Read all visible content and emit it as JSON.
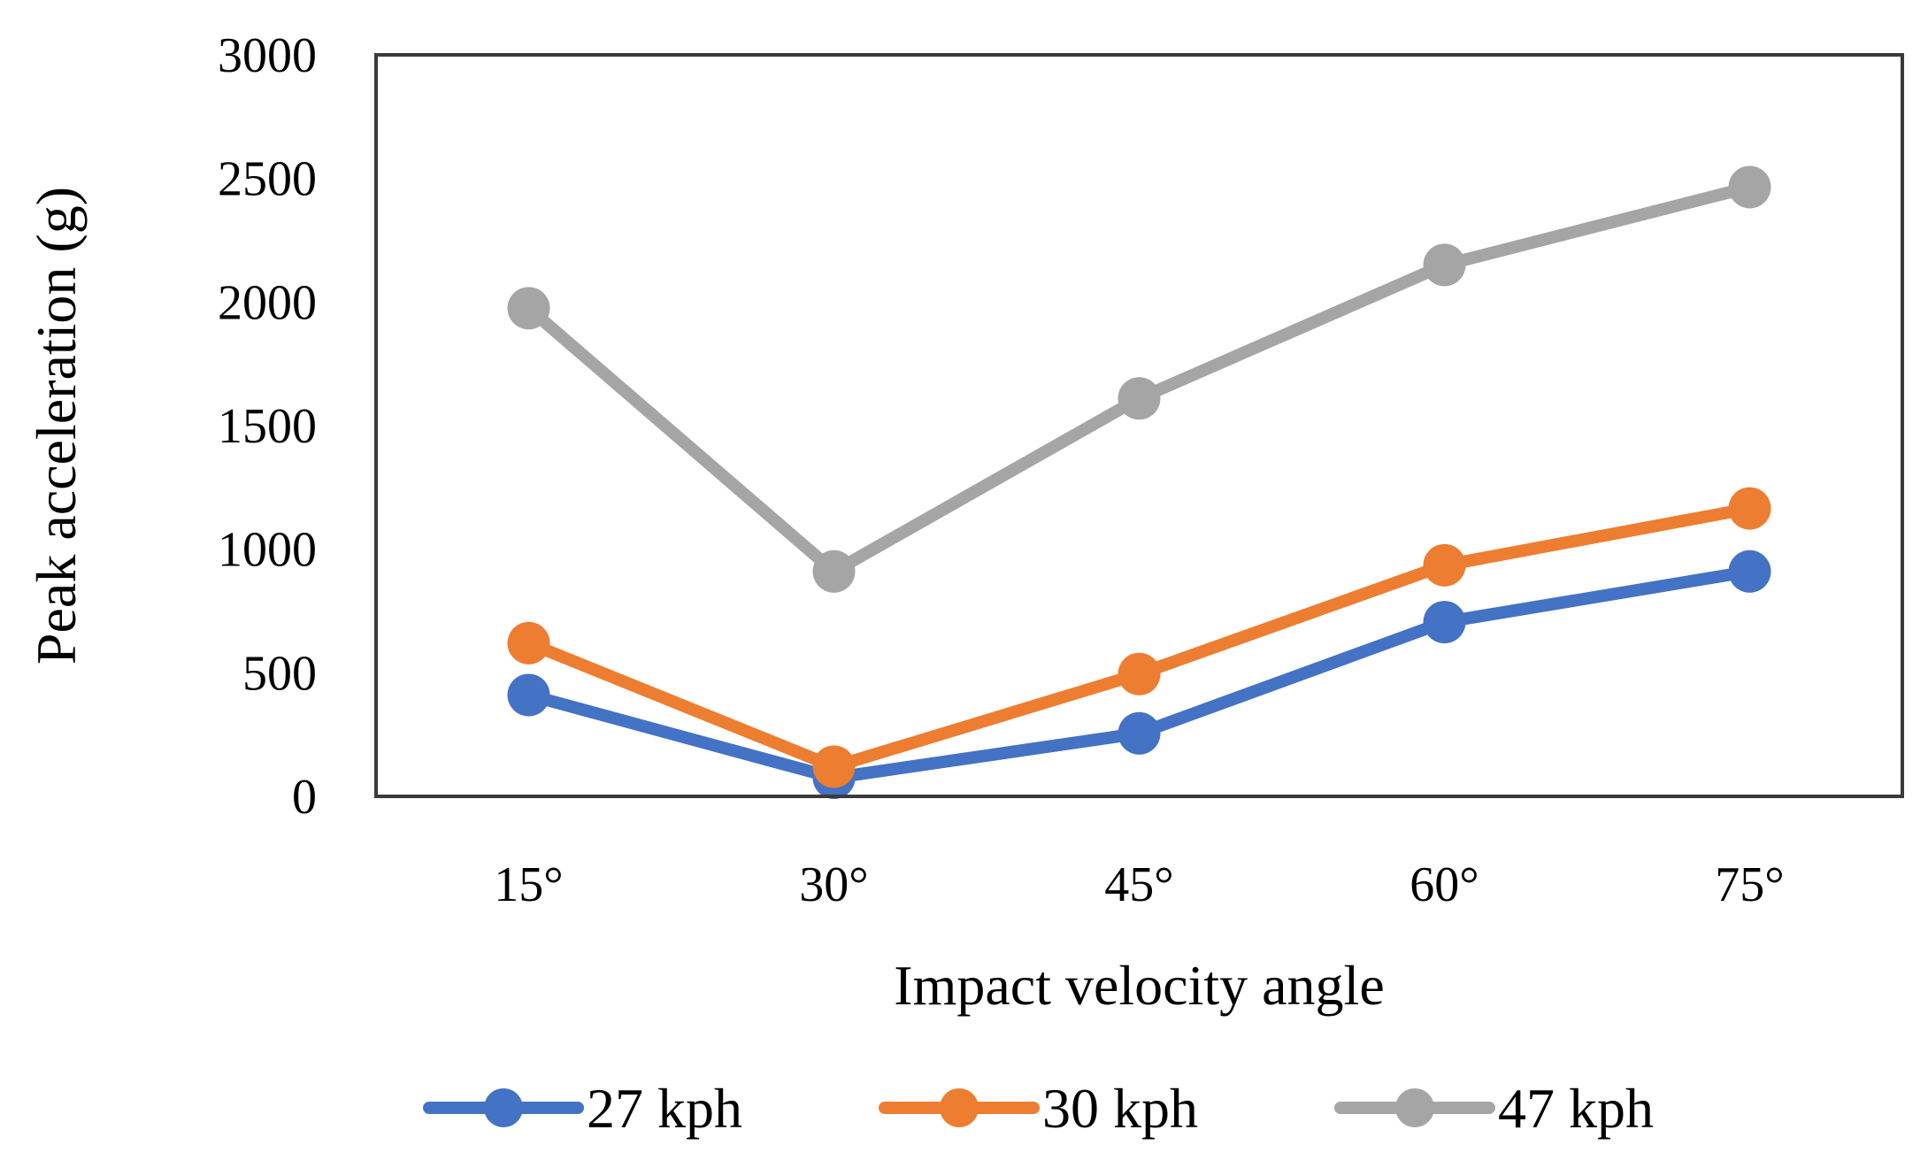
{
  "chart_data": {
    "type": "line",
    "title": "",
    "xlabel": "Impact velocity angle",
    "ylabel": "Peak acceleration (g)",
    "categories": [
      "15°",
      "30°",
      "45°",
      "60°",
      "75°"
    ],
    "ylim": [
      0,
      3000
    ],
    "yticks": [
      0,
      500,
      1000,
      1500,
      2000,
      2500,
      3000
    ],
    "grid": false,
    "legend_position": "bottom",
    "series": [
      {
        "name": "27 kph",
        "color": "#4472C4",
        "values": [
          410,
          75,
          255,
          705,
          910
        ]
      },
      {
        "name": "30 kph",
        "color": "#ED7D31",
        "values": [
          620,
          120,
          495,
          935,
          1165
        ]
      },
      {
        "name": "47 kph",
        "color": "#A5A5A5",
        "values": [
          1975,
          910,
          1610,
          2150,
          2465
        ]
      }
    ]
  }
}
